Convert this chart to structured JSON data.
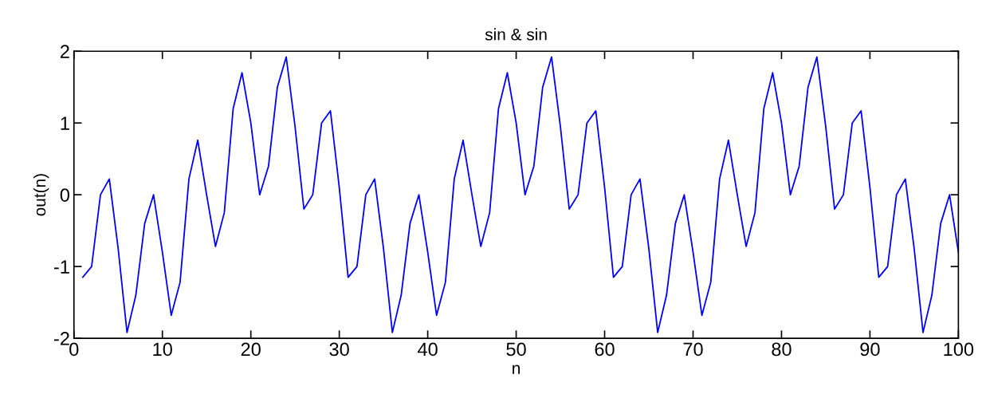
{
  "chart_data": {
    "type": "line",
    "title": "sin & sin",
    "xlabel": "n",
    "ylabel": "out(n)",
    "x": [
      1,
      2,
      3,
      4,
      5,
      6,
      7,
      8,
      9,
      10,
      11,
      12,
      13,
      14,
      15,
      16,
      17,
      18,
      19,
      20,
      21,
      22,
      23,
      24,
      25,
      26,
      27,
      28,
      29,
      30,
      31,
      32,
      33,
      34,
      35,
      36,
      37,
      38,
      39,
      40,
      41,
      42,
      43,
      44,
      45,
      46,
      47,
      48,
      49,
      50,
      51,
      52,
      53,
      54,
      55,
      56,
      57,
      58,
      59,
      60,
      61,
      62,
      63,
      64,
      65,
      66,
      67,
      68,
      69,
      70,
      71,
      72,
      73,
      74,
      75,
      76,
      77,
      78,
      79,
      80,
      81,
      82,
      83,
      84,
      85,
      86,
      87,
      88,
      89,
      90,
      91,
      92,
      93,
      94,
      95,
      96,
      97,
      98,
      99,
      100
    ],
    "series": [
      {
        "color": "#0000ff",
        "values": [
          -1.15,
          -1.0,
          0.0,
          0.22,
          -0.75,
          -1.92,
          -1.4,
          -0.4,
          0.0,
          -0.8,
          -1.68,
          -1.22,
          0.22,
          0.76,
          0.0,
          -0.72,
          -0.25,
          1.2,
          1.7,
          1.0,
          0.0,
          0.4,
          1.5,
          1.92,
          0.95,
          -0.2,
          0.0,
          1.0,
          1.17,
          0.1,
          -1.15,
          -1.0,
          0.0,
          0.22,
          -0.75,
          -1.92,
          -1.4,
          -0.4,
          0.0,
          -0.8,
          -1.68,
          -1.22,
          0.22,
          0.76,
          0.0,
          -0.72,
          -0.25,
          1.2,
          1.7,
          1.0,
          0.0,
          0.4,
          1.5,
          1.92,
          0.95,
          -0.2,
          0.0,
          1.0,
          1.17,
          0.1,
          -1.15,
          -1.0,
          0.0,
          0.22,
          -0.75,
          -1.92,
          -1.4,
          -0.4,
          0.0,
          -0.8,
          -1.68,
          -1.22,
          0.22,
          0.76,
          0.0,
          -0.72,
          -0.25,
          1.2,
          1.7,
          1.0,
          0.0,
          0.4,
          1.5,
          1.92,
          0.95,
          -0.2,
          0.0,
          1.0,
          1.17,
          0.1,
          -1.15,
          -1.0,
          0.0,
          0.22,
          -0.75,
          -1.92,
          -1.4,
          -0.4,
          0.0,
          -0.8
        ]
      }
    ],
    "xlim": [
      0,
      100
    ],
    "xticks": [
      0,
      10,
      20,
      30,
      40,
      50,
      60,
      70,
      80,
      90,
      100
    ],
    "ylim": [
      -2,
      2
    ],
    "yticks": [
      -2,
      -1,
      0,
      1,
      2
    ],
    "grid": false,
    "marker": "none",
    "line_style": "solid"
  }
}
